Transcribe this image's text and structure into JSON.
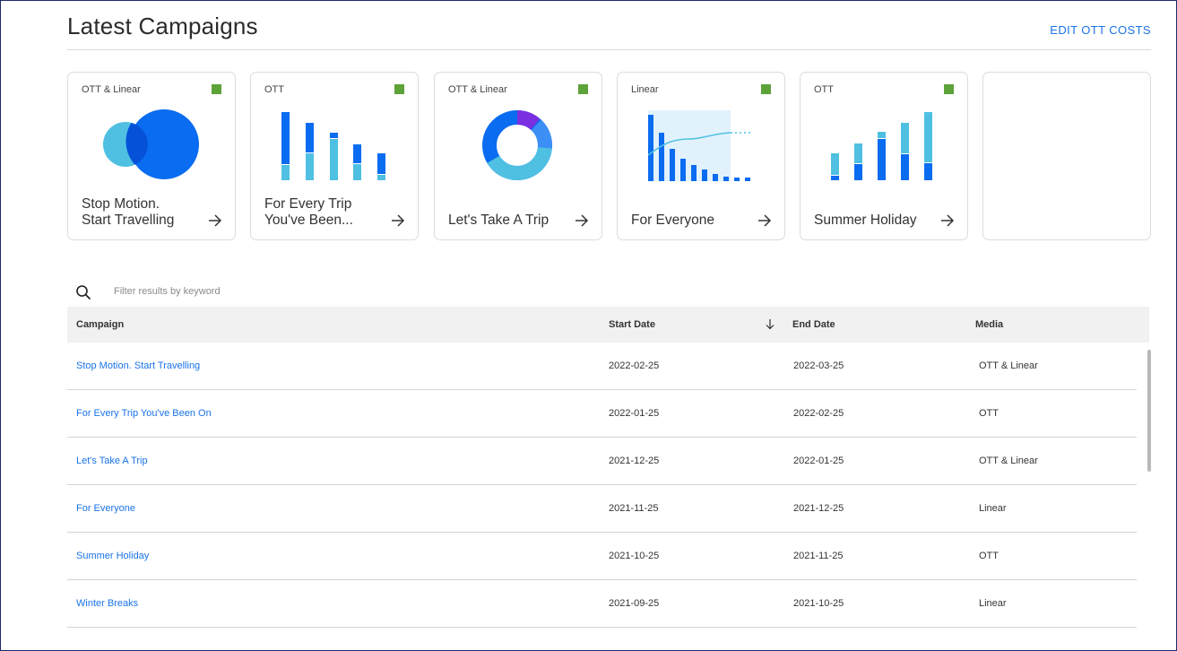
{
  "header": {
    "title": "Latest Campaigns",
    "edit_link": "EDIT OTT COSTS"
  },
  "colors": {
    "accent": "#1a73e8",
    "status_active": "#5ea23a",
    "chart_dark": "#0a6cf0",
    "chart_light": "#4fc0e2",
    "chart_purple": "#7a2fe0"
  },
  "cards": [
    {
      "media": "OTT & Linear",
      "name_line1": "Stop Motion.",
      "name_line2": "Start Travelling",
      "viz": "venn-chart",
      "status": "active"
    },
    {
      "media": "OTT",
      "name_line1": "For Every Trip",
      "name_line2": "You've Been...",
      "viz": "stacked-bar-chart",
      "status": "active"
    },
    {
      "media": "OTT & Linear",
      "name_line1": "Let's Take A Trip",
      "name_line2": "",
      "viz": "donut-chart",
      "status": "active"
    },
    {
      "media": "Linear",
      "name_line1": "For Everyone",
      "name_line2": "",
      "viz": "bar-line-chart",
      "status": "active"
    },
    {
      "media": "OTT",
      "name_line1": "Summer Holiday",
      "name_line2": "",
      "viz": "stacked-bar-chart",
      "status": "active"
    }
  ],
  "search": {
    "placeholder": "Filter results by keyword",
    "icon": "search-icon"
  },
  "table": {
    "columns": {
      "campaign": "Campaign",
      "start_date": "Start Date",
      "end_date": "End Date",
      "media": "Media"
    },
    "sort": {
      "column": "start_date",
      "direction": "descending",
      "icon": "arrow-down-icon"
    },
    "rows": [
      {
        "campaign": "Stop Motion. Start Travelling",
        "start": "2022-02-25",
        "end": "2022-03-25",
        "media": "OTT & Linear"
      },
      {
        "campaign": "For Every Trip You've Been On",
        "start": "2022-01-25",
        "end": "2022-02-25",
        "media": "OTT"
      },
      {
        "campaign": "Let's Take A Trip",
        "start": "2021-12-25",
        "end": "2022-01-25",
        "media": "OTT & Linear"
      },
      {
        "campaign": "For Everyone",
        "start": "2021-11-25",
        "end": "2021-12-25",
        "media": "Linear"
      },
      {
        "campaign": "Summer Holiday",
        "start": "2021-10-25",
        "end": "2021-11-25",
        "media": "OTT"
      },
      {
        "campaign": "Winter Breaks",
        "start": "2021-09-25",
        "end": "2021-10-25",
        "media": "Linear"
      }
    ]
  }
}
